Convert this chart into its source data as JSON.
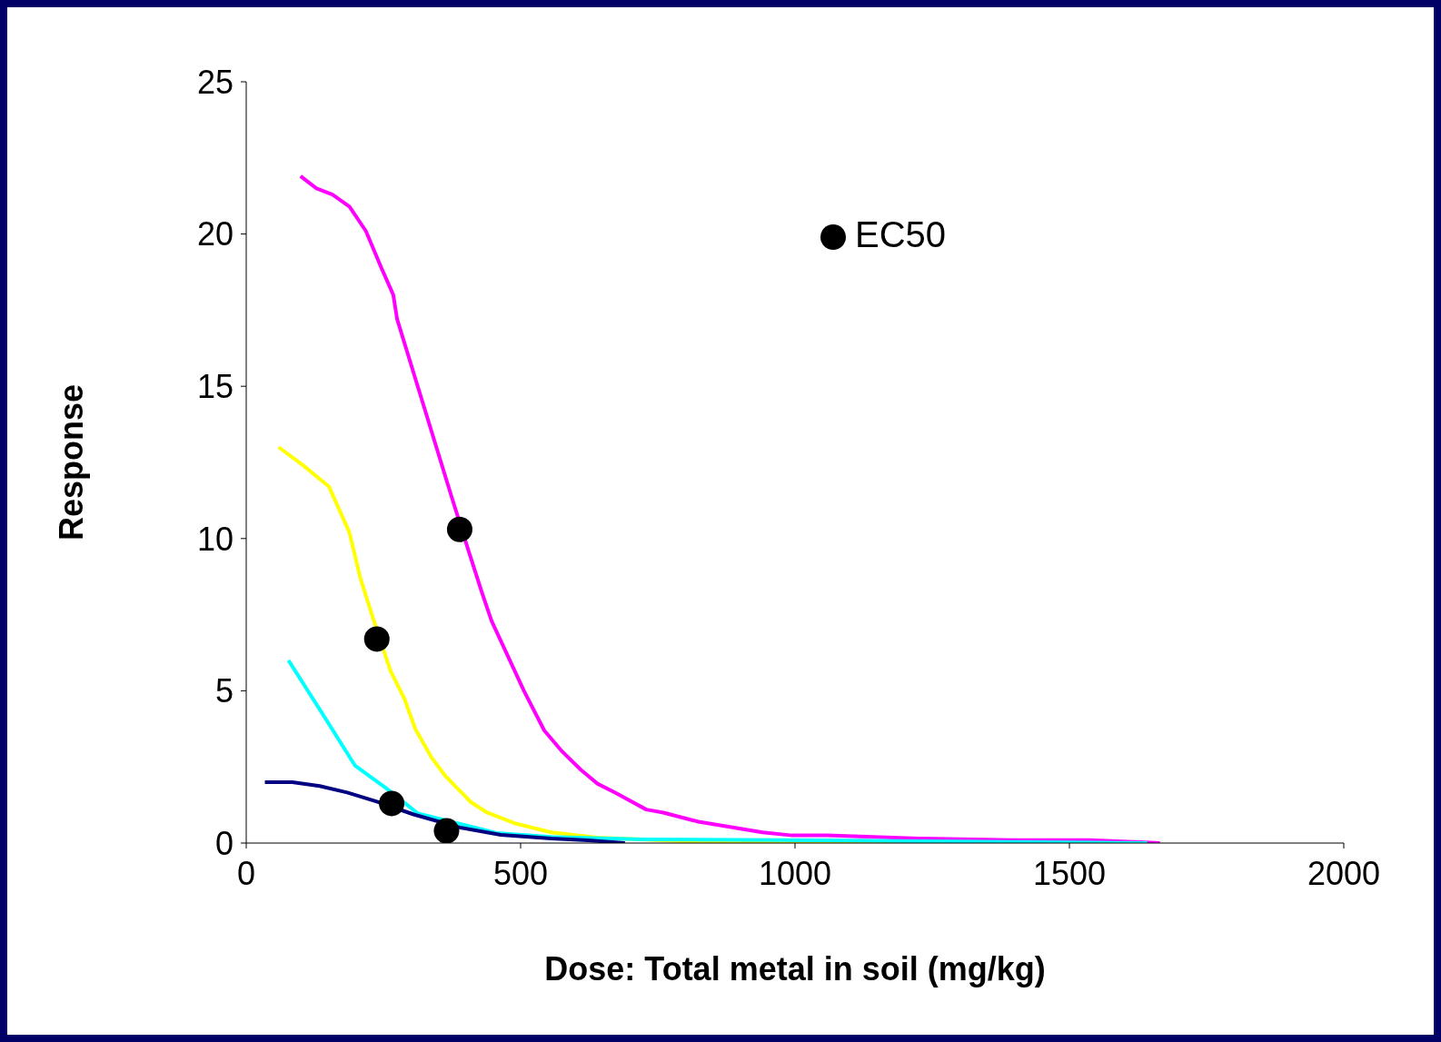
{
  "chart_data": {
    "type": "line",
    "xlabel": "Dose: Total metal in soil (mg/kg)",
    "ylabel": "Response",
    "xlim": [
      0,
      2000
    ],
    "xticks": [
      0,
      500,
      1000,
      1500,
      2000
    ],
    "ylim": [
      0,
      25
    ],
    "yticks": [
      0,
      5,
      10,
      15,
      20,
      25
    ],
    "grid": false,
    "legend": "top right",
    "series": [
      {
        "color": "#ff00ff",
        "x": [
          99,
          128,
          157,
          188,
          218,
          246,
          268,
          275,
          338,
          372,
          405,
          430,
          447,
          506,
          543,
          576,
          610,
          640,
          673,
          729,
          760,
          824,
          941,
          995,
          1059,
          1226,
          1394,
          1536,
          1665
        ],
        "values": [
          21.9,
          21.5,
          21.3,
          20.9,
          20.1,
          18.9,
          18.0,
          17.2,
          13.5,
          11.5,
          9.6,
          8.2,
          7.3,
          5.0,
          3.7,
          3.0,
          2.4,
          1.95,
          1.65,
          1.1,
          1.0,
          0.7,
          0.35,
          0.25,
          0.25,
          0.15,
          0.1,
          0.1,
          0
        ]
      },
      {
        "color": "#ffff00",
        "x": [
          59,
          104,
          151,
          188,
          208,
          229,
          263,
          288,
          308,
          338,
          363,
          409,
          439,
          489,
          556,
          640,
          807,
          1059,
          1226
        ],
        "values": [
          13.0,
          12.4,
          11.7,
          10.2,
          8.7,
          7.5,
          5.65,
          4.75,
          3.75,
          2.8,
          2.2,
          1.35,
          1.0,
          0.65,
          0.35,
          0.18,
          0.05,
          0,
          0
        ]
      },
      {
        "color": "#00ffff",
        "x": [
          77,
          137,
          198,
          255,
          313,
          456,
          556,
          724,
          1059,
          1226,
          1642
        ],
        "values": [
          6.0,
          4.3,
          2.55,
          1.8,
          0.97,
          0.33,
          0.2,
          0.12,
          0.09,
          0.06,
          0
        ]
      },
      {
        "color": "#000080",
        "x": [
          34,
          84,
          134,
          184,
          238,
          305,
          389,
          464,
          556,
          623,
          690
        ],
        "values": [
          2.0,
          2.0,
          1.87,
          1.66,
          1.36,
          0.94,
          0.51,
          0.27,
          0.15,
          0.09,
          0
        ]
      },
      {
        "type": "scatter",
        "name": "EC50",
        "color": "#000000",
        "marker": "circle",
        "x": [
          389,
          238,
          265,
          365
        ],
        "values": [
          10.3,
          6.7,
          1.3,
          0.4
        ]
      }
    ]
  }
}
